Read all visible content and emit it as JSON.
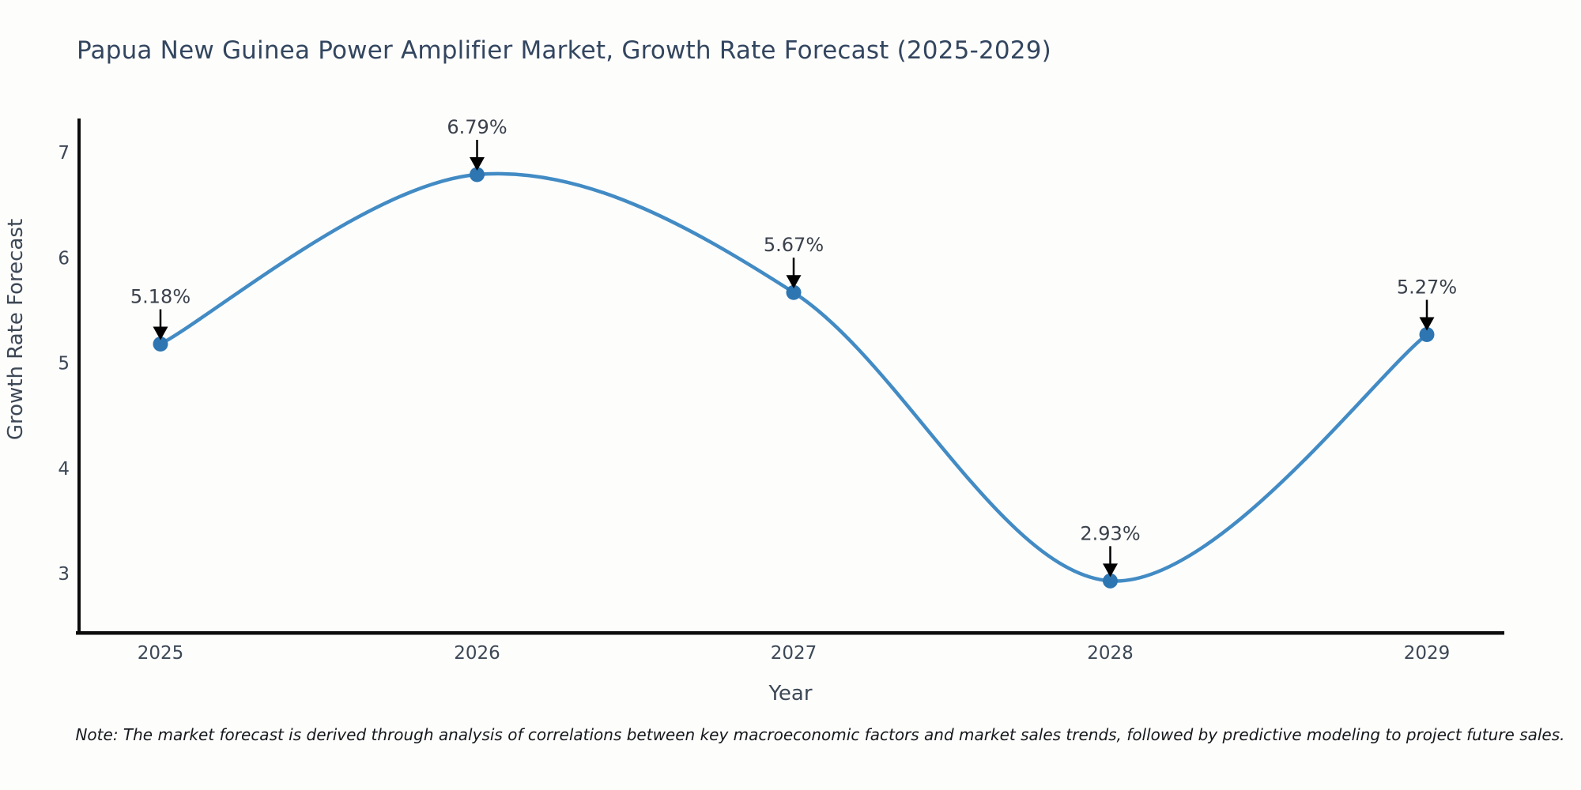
{
  "chart_data": {
    "type": "line",
    "title": "Papua New Guinea Power Amplifier Market, Growth Rate Forecast (2025-2029)",
    "xlabel": "Year",
    "ylabel": "Growth Rate Forecast",
    "categories": [
      "2025",
      "2026",
      "2027",
      "2028",
      "2029"
    ],
    "values": [
      5.18,
      6.79,
      5.67,
      2.93,
      5.27
    ],
    "point_labels": [
      "5.18%",
      "6.79%",
      "5.67%",
      "2.93%",
      "5.27%"
    ],
    "yticks": [
      7,
      6,
      5,
      4,
      3
    ],
    "ylim": [
      2.4,
      7.4
    ],
    "grid": false,
    "legend": "none",
    "line_color": "#428bc4",
    "marker_color": "#2e76b2",
    "annotation_text_color": "#3a414b",
    "annotation_arrow_color": "#000000",
    "axis_text_color": "#3d4856",
    "spine_color": "#0c0c0c",
    "note": "Note: The market forecast is derived through analysis of correlations between key macroeconomic factors and market sales trends, followed by predictive modeling to project future sales."
  }
}
